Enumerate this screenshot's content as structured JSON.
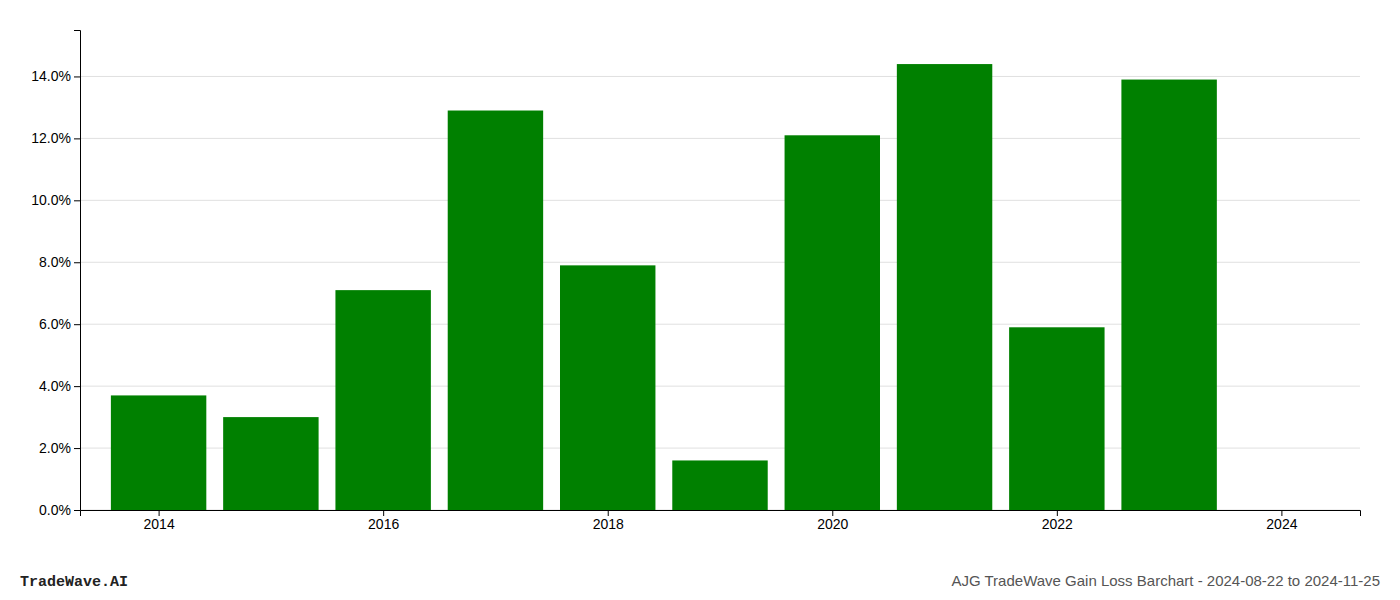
{
  "chart_data": {
    "type": "bar",
    "x": [
      2014,
      2015,
      2016,
      2017,
      2018,
      2019,
      2020,
      2021,
      2022,
      2023
    ],
    "values": [
      0.037,
      0.03,
      0.071,
      0.129,
      0.079,
      0.016,
      0.121,
      0.144,
      0.059,
      0.139
    ],
    "color": "#008000",
    "xlim": [
      2013.3,
      2024.7
    ],
    "xticks": [
      2014,
      2016,
      2018,
      2020,
      2022,
      2024
    ],
    "ylim": [
      0,
      0.155
    ],
    "yticks": [
      {
        "value": 0.0,
        "label": "0.0%"
      },
      {
        "value": 0.02,
        "label": "2.0%"
      },
      {
        "value": 0.04,
        "label": "4.0%"
      },
      {
        "value": 0.06,
        "label": "6.0%"
      },
      {
        "value": 0.08,
        "label": "8.0%"
      },
      {
        "value": 0.1,
        "label": "10.0%"
      },
      {
        "value": 0.12,
        "label": "12.0%"
      },
      {
        "value": 0.14,
        "label": "14.0%"
      }
    ],
    "grid": true,
    "annotations": [
      "TradeWave.AI",
      "AJG TradeWave Gain Loss Barchart - 2024-08-22 to 2024-11-25"
    ]
  }
}
